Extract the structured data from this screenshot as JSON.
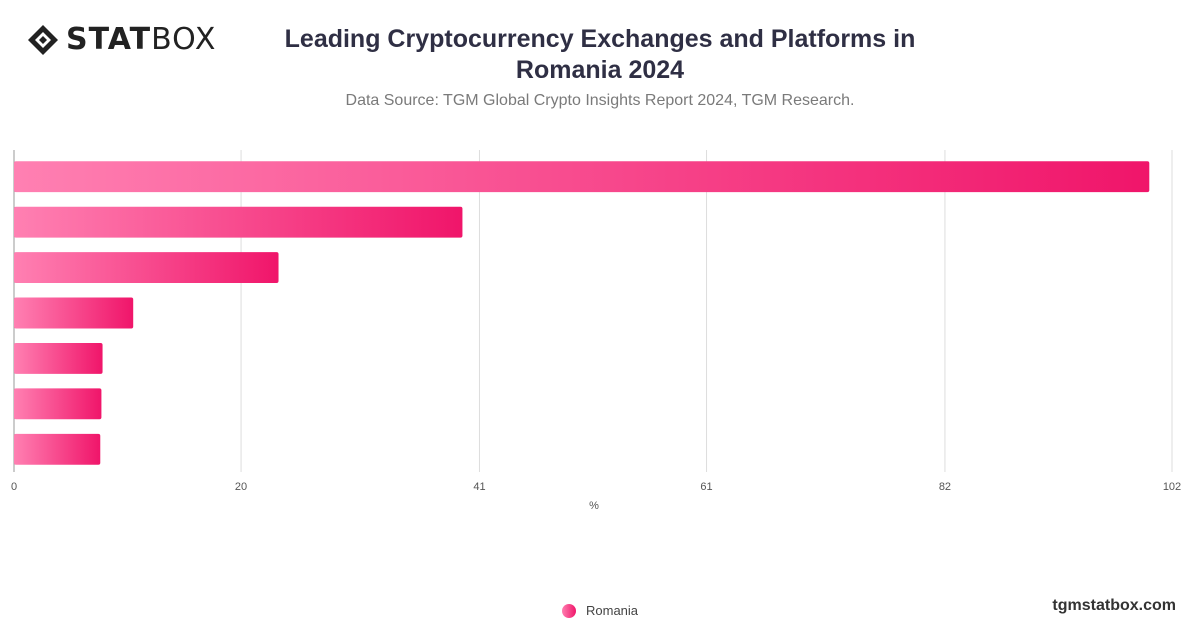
{
  "brand": {
    "logo_bold": "STAT",
    "logo_light": "BOX",
    "accent_start": "#ff80b2",
    "accent_end": "#f0156a"
  },
  "header": {
    "title": "Leading Cryptocurrency Exchanges and Platforms in Romania 2024",
    "subtitle": "Data Source: TGM Global Crypto Insights Report 2024, TGM Research."
  },
  "footer": {
    "site": "tgmstatbox.com"
  },
  "chart_data": {
    "type": "bar",
    "orientation": "horizontal",
    "title": "Leading Cryptocurrency Exchanges and Platforms in Romania 2024",
    "xlabel": "%",
    "ylabel": "",
    "xlim": [
      0,
      102
    ],
    "x_ticks": [
      "0",
      "20",
      "41",
      "61",
      "82",
      "102"
    ],
    "grid": true,
    "legend_position": "bottom-center",
    "series": [
      {
        "name": "Romania",
        "values": [
          100,
          39.5,
          23.3,
          10.5,
          7.8,
          7.7,
          7.6
        ]
      }
    ]
  }
}
